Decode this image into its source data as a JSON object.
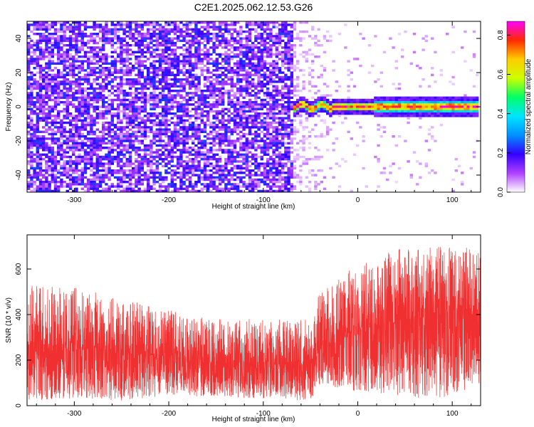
{
  "figure": {
    "title": "C2E1.2025.062.12.53.G26"
  },
  "colors": {
    "snr_trace": "#f03030",
    "colormap": [
      "#ffffff",
      "#b040ff",
      "#3300ff",
      "#0090ff",
      "#00e5ff",
      "#00ff66",
      "#ccff00",
      "#ffcc00",
      "#ff2a00",
      "#ff00ff"
    ]
  },
  "chart_data": [
    {
      "type": "heatmap",
      "title": "",
      "xlabel": "Height of straight line (km)",
      "ylabel": "Frequency (Hz)",
      "xlim": [
        -350,
        130
      ],
      "ylim": [
        -50,
        50
      ],
      "xticks": [
        -300,
        -200,
        -100,
        0,
        100
      ],
      "yticks": [
        -40,
        -20,
        0,
        20,
        40
      ],
      "colorbar": {
        "label": "Normalized spectral amplitude",
        "range": [
          0.0,
          0.87
        ],
        "ticks": [
          0.0,
          0.2,
          0.4,
          0.6,
          0.8
        ]
      },
      "regions": [
        {
          "x_range": [
            -350,
            -68
          ],
          "description": "broadband noise",
          "amplitude_approx": 0.12
        },
        {
          "x_range": [
            -68,
            130
          ],
          "description": "narrow signal near 0 Hz",
          "center_frequency": 0,
          "amplitude_approx": 0.85
        }
      ]
    },
    {
      "type": "line",
      "title": "",
      "xlabel": "Height of straight line (km)",
      "ylabel": "SNR (10 * v/v)",
      "xlim": [
        -350,
        130
      ],
      "ylim": [
        0,
        750
      ],
      "xticks": [
        -300,
        -200,
        -100,
        0,
        100
      ],
      "yticks": [
        0,
        200,
        400,
        600
      ],
      "series": [
        {
          "x": [
            -350,
            -300,
            -250,
            -200,
            -150,
            -100,
            -50,
            -45,
            -40,
            0,
            50,
            100,
            130
          ],
          "y_low": [
            20,
            30,
            20,
            40,
            40,
            30,
            20,
            60,
            90,
            60,
            30,
            40,
            100
          ],
          "y_mean": [
            230,
            245,
            240,
            210,
            185,
            180,
            180,
            210,
            240,
            330,
            380,
            400,
            400
          ],
          "y_high": [
            530,
            520,
            470,
            420,
            380,
            380,
            380,
            450,
            500,
            620,
            700,
            700,
            700
          ]
        }
      ]
    }
  ]
}
